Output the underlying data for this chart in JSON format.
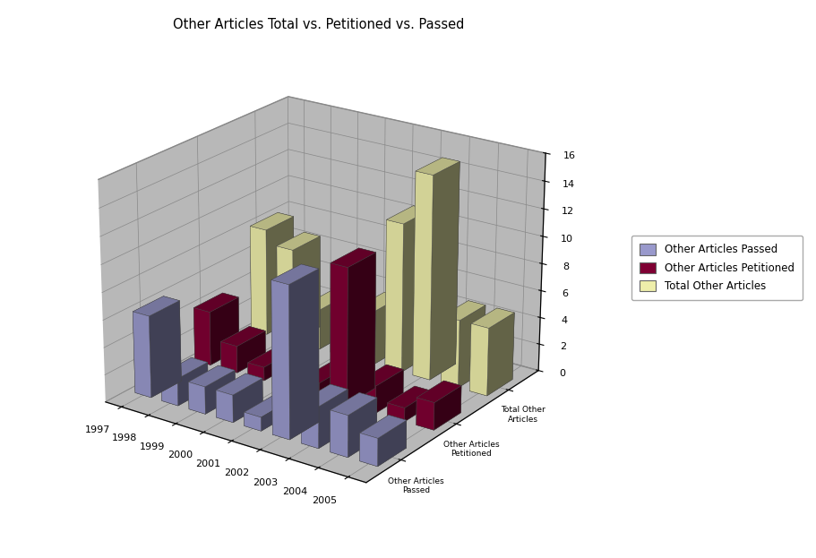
{
  "title": "Other Articles Total vs. Petitioned vs. Passed",
  "years": [
    "1997",
    "1998",
    "1999",
    "2000",
    "2001",
    "2002",
    "2003",
    "2004",
    "2005"
  ],
  "series_order": [
    "Other Articles Passed",
    "Other Articles Petitioned",
    "Total Other Articles"
  ],
  "series": {
    "Other Articles Passed": [
      6,
      2,
      2,
      2,
      1,
      11,
      3,
      3,
      2
    ],
    "Other Articles Petitioned": [
      4,
      2,
      1,
      0,
      1,
      10,
      2,
      1,
      2
    ],
    "Total Other Articles": [
      8,
      7,
      3,
      3,
      4,
      11,
      15,
      5,
      5
    ]
  },
  "colors": {
    "Other Articles Passed": "#9999cc",
    "Other Articles Petitioned": "#7f0033",
    "Total Other Articles": "#eeeeaa"
  },
  "ylim": [
    0,
    16
  ],
  "yticks": [
    0,
    2,
    4,
    6,
    8,
    10,
    12,
    14,
    16
  ],
  "bar_width": 0.6,
  "bar_depth": 0.5,
  "elev": 22,
  "azim": -55,
  "wall_color": "#b8b8b8",
  "floor_color": "#888888",
  "figsize": [
    9.11,
    6.23
  ],
  "dpi": 100
}
